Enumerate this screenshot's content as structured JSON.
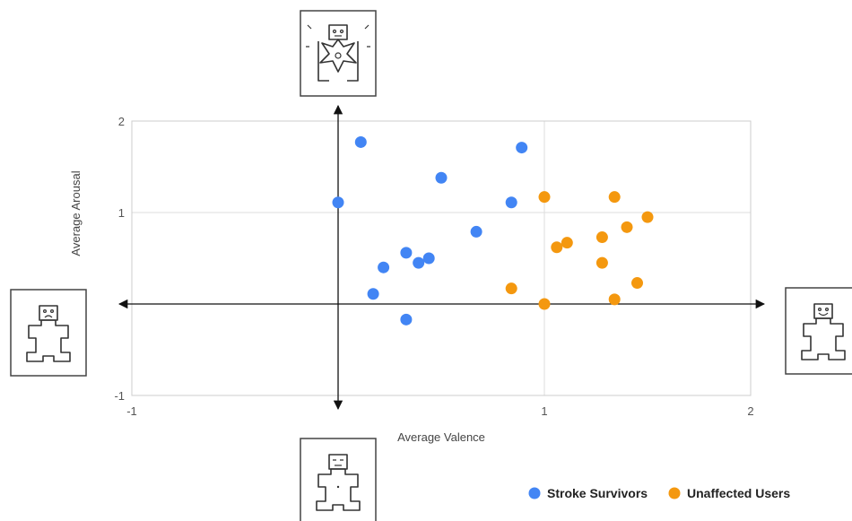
{
  "chart_data": {
    "type": "scatter",
    "title": "",
    "xlabel": "Average Valence",
    "ylabel": "Average Arousal",
    "xlim": [
      -1,
      2
    ],
    "ylim": [
      -1,
      2
    ],
    "xticks": [
      -1,
      1,
      2
    ],
    "yticks": [
      -1,
      1,
      2
    ],
    "xtick_labels": [
      "-1",
      "1",
      "2"
    ],
    "ytick_labels": [
      "-1",
      "1",
      "2"
    ],
    "grid": true,
    "legend_position": "bottom-right",
    "series": [
      {
        "name": "Stroke Survivors",
        "color": "#4285f4",
        "points": [
          {
            "x": 0.11,
            "y": 1.77
          },
          {
            "x": 0.89,
            "y": 1.71
          },
          {
            "x": 0.5,
            "y": 1.38
          },
          {
            "x": 0.0,
            "y": 1.11
          },
          {
            "x": 0.84,
            "y": 1.11
          },
          {
            "x": 0.67,
            "y": 0.79
          },
          {
            "x": 0.33,
            "y": 0.56
          },
          {
            "x": 0.44,
            "y": 0.5
          },
          {
            "x": 0.39,
            "y": 0.45
          },
          {
            "x": 0.22,
            "y": 0.4
          },
          {
            "x": 0.17,
            "y": 0.11
          },
          {
            "x": 0.33,
            "y": -0.17
          }
        ]
      },
      {
        "name": "Unaffected Users",
        "color": "#f4980f",
        "points": [
          {
            "x": 1.0,
            "y": 1.17
          },
          {
            "x": 1.34,
            "y": 1.17
          },
          {
            "x": 1.5,
            "y": 0.95
          },
          {
            "x": 1.4,
            "y": 0.84
          },
          {
            "x": 1.28,
            "y": 0.73
          },
          {
            "x": 1.11,
            "y": 0.67
          },
          {
            "x": 1.06,
            "y": 0.62
          },
          {
            "x": 1.28,
            "y": 0.45
          },
          {
            "x": 1.45,
            "y": 0.23
          },
          {
            "x": 0.84,
            "y": 0.17
          },
          {
            "x": 1.34,
            "y": 0.05
          },
          {
            "x": 1.0,
            "y": 0.0
          }
        ]
      }
    ]
  },
  "colors": {
    "grid": "#dddddd",
    "axis": "#111111",
    "plot_border": "#cccccc"
  },
  "sam_icons": [
    {
      "name": "sam-icon-high-arousal",
      "meaning": "high arousal"
    },
    {
      "name": "sam-icon-negative-valence",
      "meaning": "negative valence"
    },
    {
      "name": "sam-icon-positive-valence",
      "meaning": "positive valence"
    },
    {
      "name": "sam-icon-low-arousal",
      "meaning": "low arousal"
    }
  ]
}
